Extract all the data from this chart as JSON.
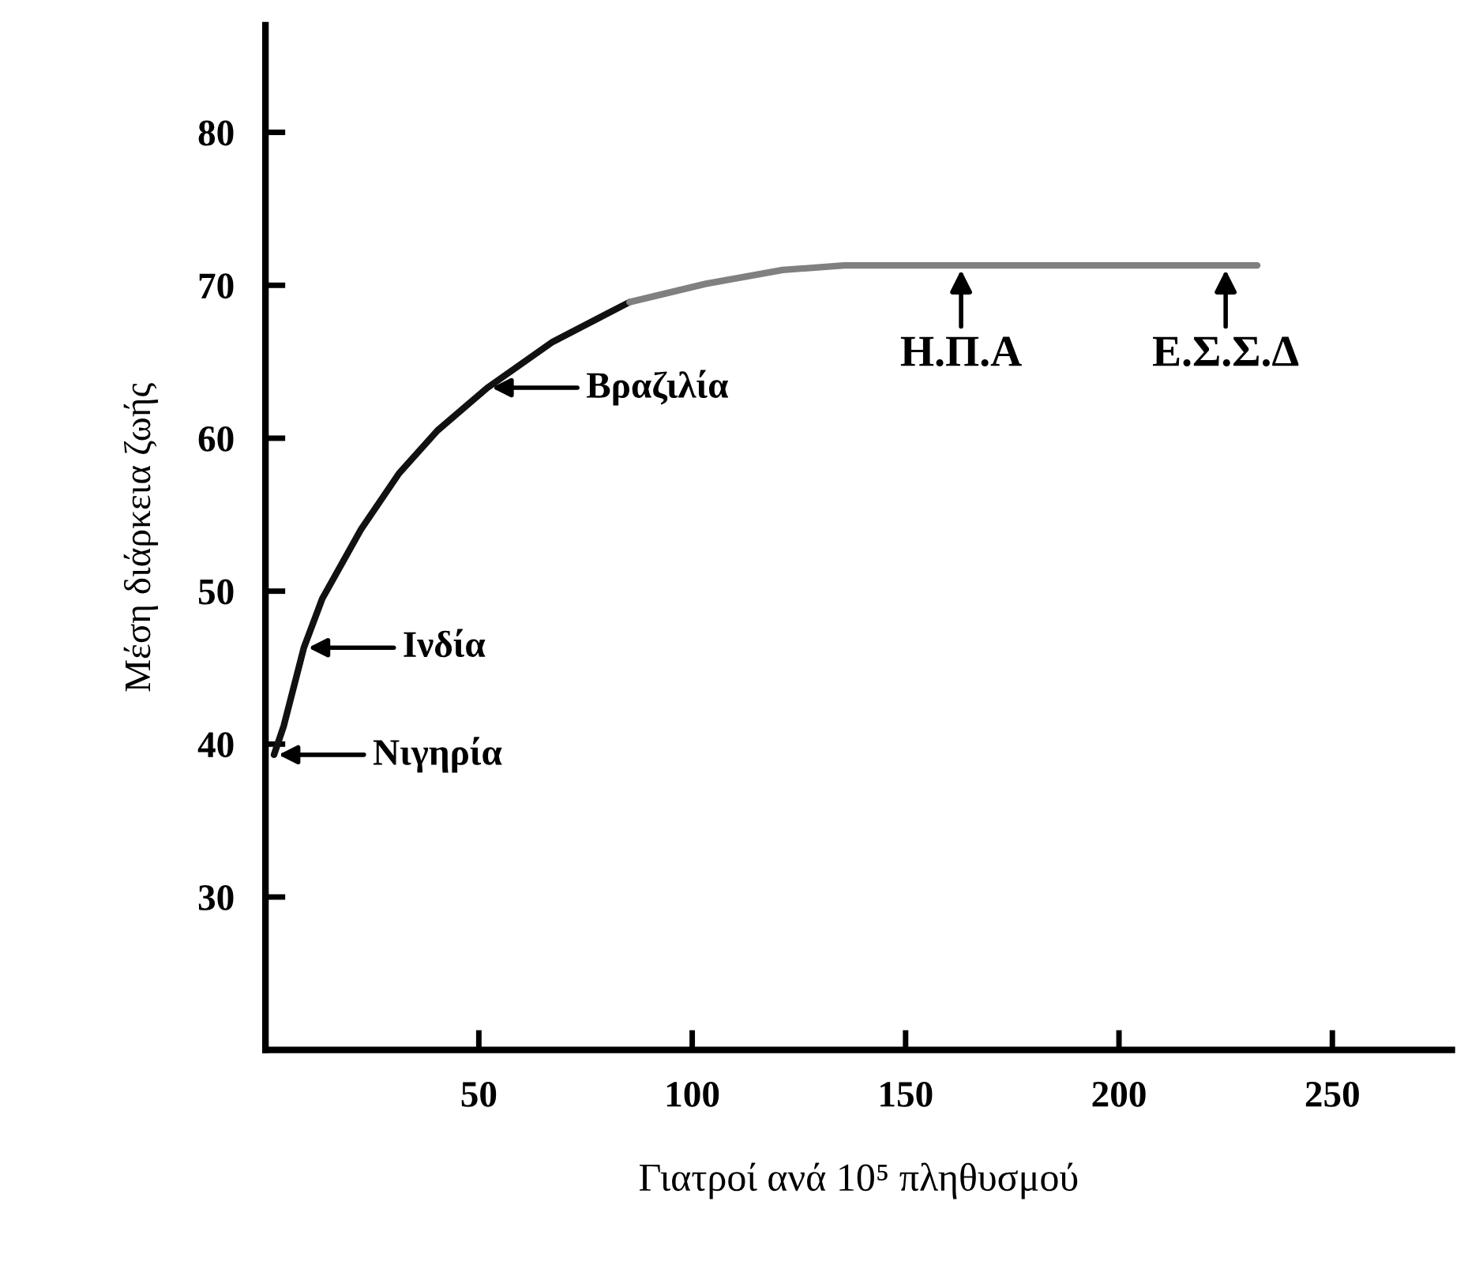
{
  "chart_data": {
    "type": "line",
    "xlabel": "Γιατροί ανά 10⁵ πληθυσμού",
    "ylabel": "Μέση διάρκεια ζωής",
    "series": [
      {
        "color": "#111111",
        "x": [
          2,
          4.3,
          9,
          13.3,
          22.3,
          31.3,
          40.3,
          52,
          67.3,
          85.3
        ],
        "values": [
          39.3,
          41.2,
          46.3,
          49.5,
          54.0,
          57.7,
          60.5,
          63.3,
          66.3,
          68.9
        ]
      },
      {
        "color": "#808080",
        "x": [
          85.3,
          103.2,
          121.2,
          135.6,
          232.4
        ],
        "values": [
          68.9,
          70.1,
          71.0,
          71.3,
          71.3
        ]
      }
    ],
    "xlim": [
      0,
      278
    ],
    "ylim": [
      20,
      87
    ],
    "xticks": [
      50,
      100,
      150,
      200,
      250
    ],
    "yticks": [
      30,
      40,
      50,
      60,
      70,
      80
    ],
    "grid": false,
    "legend": false,
    "marker": "none",
    "line_style": "solid",
    "annotations": [
      {
        "text": "Νιγηρία",
        "x": 2,
        "y": 39.3
      },
      {
        "text": "Ινδία",
        "x": 9,
        "y": 46.3
      },
      {
        "text": "Βραζιλία",
        "x": 52,
        "y": 63.3
      },
      {
        "text": "Η.Π.Α",
        "x": 163,
        "y": 71.3
      },
      {
        "text": "Ε.Σ.Σ.Δ",
        "x": 225,
        "y": 71.3
      }
    ]
  }
}
